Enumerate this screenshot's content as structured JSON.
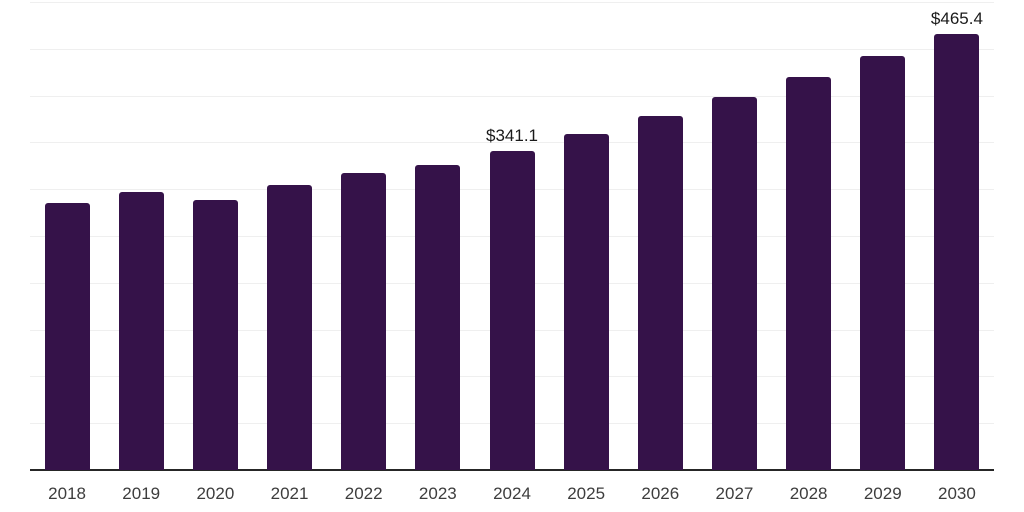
{
  "chart_data": {
    "type": "bar",
    "title": "",
    "xlabel": "",
    "ylabel": "",
    "categories": [
      "2018",
      "2019",
      "2020",
      "2021",
      "2022",
      "2023",
      "2024",
      "2025",
      "2026",
      "2027",
      "2028",
      "2029",
      "2030"
    ],
    "values": [
      285.5,
      297.0,
      288.5,
      304.0,
      317.5,
      326.0,
      341.1,
      359.3,
      378.4,
      398.6,
      419.8,
      442.2,
      465.4
    ],
    "data_labels": {
      "2024": "$341.1",
      "2030": "$465.4"
    },
    "ylim": [
      0,
      500
    ],
    "gridline_step": 50,
    "grid": true,
    "legend": false,
    "y_axis_labels_visible": false,
    "bar_color": "#351249",
    "axis_color": "#262626",
    "grid_color": "#efefef",
    "data_label_color": "#1a1a1a",
    "tick_label_color": "#3d3d3d"
  }
}
